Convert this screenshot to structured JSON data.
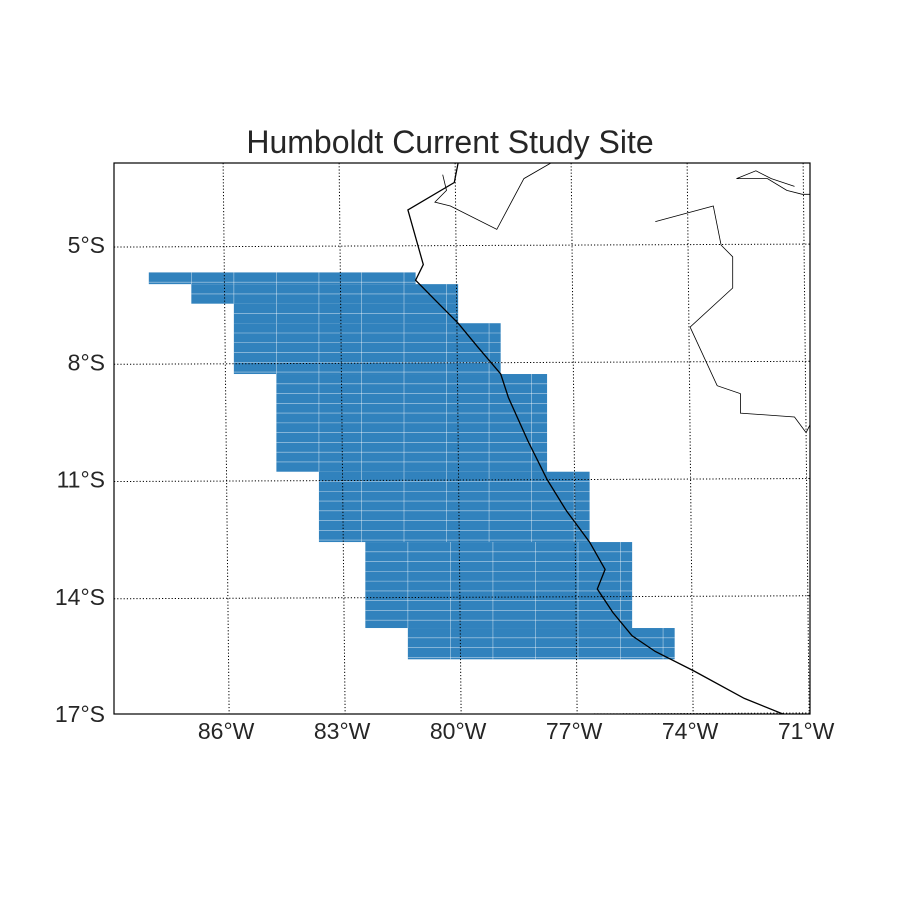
{
  "title": "Humboldt Current Study Site",
  "map": {
    "lon_range": [
      -88.9,
      -70.9
    ],
    "lat_range": [
      -17,
      -2.9
    ],
    "colors": {
      "study_area": "#3182bd",
      "grid_lines_internal": "#ffffff",
      "coastline": "#000000",
      "borders": "#000000",
      "frame": "#000000",
      "text": "#262626"
    },
    "lat_ticks": [
      {
        "value": -5,
        "label": "5°S"
      },
      {
        "value": -8,
        "label": "8°S"
      },
      {
        "value": -11,
        "label": "11°S"
      },
      {
        "value": -14,
        "label": "14°S"
      },
      {
        "value": -17,
        "label": "17°S"
      }
    ],
    "lon_ticks": [
      {
        "value": -86,
        "label": "86°W"
      },
      {
        "value": -83,
        "label": "83°W"
      },
      {
        "value": -80,
        "label": "80°W"
      },
      {
        "value": -77,
        "label": "77°W"
      },
      {
        "value": -74,
        "label": "74°W"
      },
      {
        "value": -71,
        "label": "71°W"
      }
    ],
    "study_area_rows": [
      {
        "lat_top": -5.7,
        "lat_bottom": -6.0,
        "lon_west": -88.0,
        "lon_east": -81.1
      },
      {
        "lat_top": -6.0,
        "lat_bottom": -6.5,
        "lon_west": -86.9,
        "lon_east": -80.0
      },
      {
        "lat_top": -6.5,
        "lat_bottom": -7.0,
        "lon_west": -85.8,
        "lon_east": -80.0
      },
      {
        "lat_top": -7.0,
        "lat_bottom": -8.3,
        "lon_west": -85.8,
        "lon_east": -78.9
      },
      {
        "lat_top": -8.3,
        "lat_bottom": -10.8,
        "lon_west": -84.7,
        "lon_east": -77.7
      },
      {
        "lat_top": -10.8,
        "lat_bottom": -12.6,
        "lon_west": -83.6,
        "lon_east": -76.6
      },
      {
        "lat_top": -12.6,
        "lat_bottom": -14.8,
        "lon_west": -82.4,
        "lon_east": -75.5
      },
      {
        "lat_top": -14.8,
        "lat_bottom": -15.6,
        "lon_west": -81.3,
        "lon_east": -74.4
      }
    ],
    "coastline": [
      [
        -80.0,
        -2.9
      ],
      [
        -80.1,
        -3.4
      ],
      [
        -81.3,
        -4.1
      ],
      [
        -80.9,
        -5.5
      ],
      [
        -81.1,
        -5.9
      ],
      [
        -80.6,
        -6.4
      ],
      [
        -80.0,
        -7.0
      ],
      [
        -79.5,
        -7.6
      ],
      [
        -78.9,
        -8.3
      ],
      [
        -78.7,
        -8.9
      ],
      [
        -78.2,
        -10.0
      ],
      [
        -77.7,
        -11.0
      ],
      [
        -77.2,
        -11.8
      ],
      [
        -76.6,
        -12.6
      ],
      [
        -76.2,
        -13.3
      ],
      [
        -76.4,
        -13.8
      ],
      [
        -76.0,
        -14.4
      ],
      [
        -75.5,
        -15.0
      ],
      [
        -74.9,
        -15.4
      ],
      [
        -73.9,
        -15.9
      ],
      [
        -72.6,
        -16.6
      ],
      [
        -71.6,
        -17.0
      ]
    ],
    "borders": [
      [
        [
          -80.4,
          -3.2
        ],
        [
          -80.3,
          -3.6
        ],
        [
          -80.6,
          -3.9
        ],
        [
          -80.2,
          -4.0
        ],
        [
          -79.0,
          -4.6
        ],
        [
          -78.3,
          -3.3
        ],
        [
          -77.6,
          -2.9
        ]
      ],
      [
        [
          -74.9,
          -4.4
        ],
        [
          -73.4,
          -4.0
        ],
        [
          -73.2,
          -5.0
        ],
        [
          -72.9,
          -5.3
        ],
        [
          -72.9,
          -6.1
        ],
        [
          -74.0,
          -7.1
        ],
        [
          -73.3,
          -8.6
        ],
        [
          -72.7,
          -8.8
        ],
        [
          -72.7,
          -9.3
        ],
        [
          -71.3,
          -9.4
        ],
        [
          -71.0,
          -9.8
        ],
        [
          -70.9,
          -9.6
        ]
      ],
      [
        [
          -71.3,
          -3.5
        ],
        [
          -71.9,
          -3.3
        ],
        [
          -72.3,
          -3.1
        ],
        [
          -72.8,
          -3.3
        ],
        [
          -72.0,
          -3.3
        ],
        [
          -71.5,
          -3.6
        ],
        [
          -71.1,
          -3.7
        ],
        [
          -70.9,
          -3.7
        ]
      ]
    ]
  }
}
